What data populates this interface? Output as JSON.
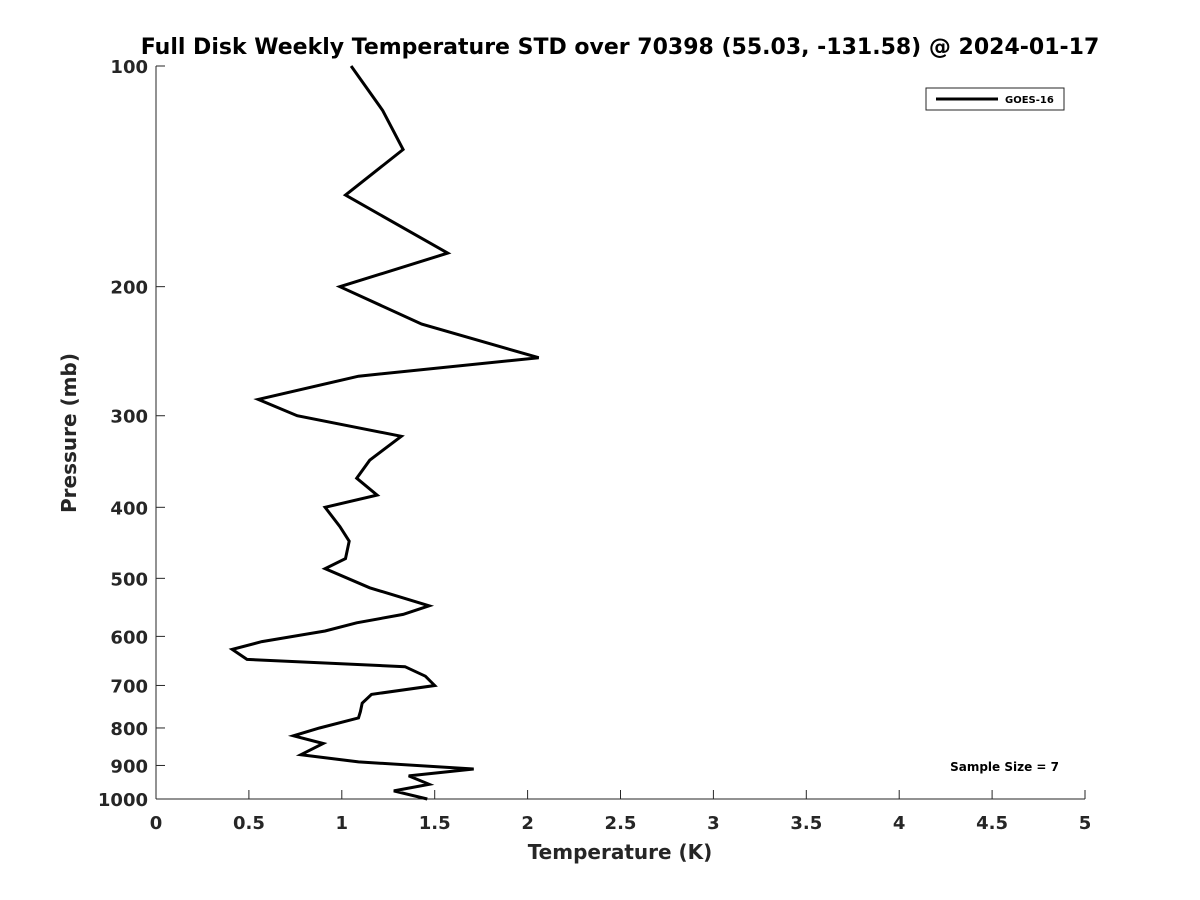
{
  "chart_data": {
    "type": "line",
    "title": "Full Disk Weekly Temperature STD over 70398 (55.03, -131.58) @ 2024-01-17",
    "xlabel": "Temperature (K)",
    "ylabel": "Pressure (mb)",
    "xlim": [
      0,
      5
    ],
    "ylim": [
      100,
      1000
    ],
    "y_scale": "log",
    "y_reversed": true,
    "grid": false,
    "legend_position": "top-right",
    "x_ticks": [
      "0",
      "0.5",
      "1",
      "1.5",
      "2",
      "2.5",
      "3",
      "3.5",
      "4",
      "4.5",
      "5"
    ],
    "y_ticks": [
      "100",
      "200",
      "300",
      "400",
      "500",
      "600",
      "700",
      "800",
      "900",
      "1000"
    ],
    "series": [
      {
        "name": "GOES-16",
        "color": "#000000",
        "points": [
          [
            1.05,
            100
          ],
          [
            1.22,
            115
          ],
          [
            1.33,
            130
          ],
          [
            1.02,
            150
          ],
          [
            1.57,
            180
          ],
          [
            0.99,
            200
          ],
          [
            1.43,
            225
          ],
          [
            2.06,
            250
          ],
          [
            1.09,
            265
          ],
          [
            0.55,
            285
          ],
          [
            0.76,
            300
          ],
          [
            1.32,
            320
          ],
          [
            1.15,
            345
          ],
          [
            1.08,
            365
          ],
          [
            1.19,
            385
          ],
          [
            0.91,
            400
          ],
          [
            0.99,
            425
          ],
          [
            1.04,
            445
          ],
          [
            1.02,
            470
          ],
          [
            0.91,
            485
          ],
          [
            1.15,
            515
          ],
          [
            1.47,
            545
          ],
          [
            1.33,
            560
          ],
          [
            1.08,
            575
          ],
          [
            0.91,
            590
          ],
          [
            0.57,
            610
          ],
          [
            0.41,
            625
          ],
          [
            0.49,
            645
          ],
          [
            1.34,
            660
          ],
          [
            1.45,
            680
          ],
          [
            1.5,
            700
          ],
          [
            1.16,
            720
          ],
          [
            1.11,
            740
          ],
          [
            1.1,
            760
          ],
          [
            1.09,
            775
          ],
          [
            0.88,
            800
          ],
          [
            0.74,
            820
          ],
          [
            0.9,
            840
          ],
          [
            0.78,
            870
          ],
          [
            1.09,
            890
          ],
          [
            1.71,
            910
          ],
          [
            1.36,
            930
          ],
          [
            1.47,
            955
          ],
          [
            1.28,
            975
          ],
          [
            1.46,
            1000
          ]
        ]
      }
    ],
    "annotations": [
      "Sample Size = 7"
    ]
  }
}
